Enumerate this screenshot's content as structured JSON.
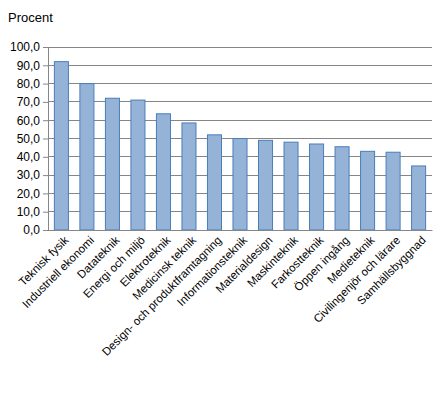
{
  "chart_data": {
    "type": "bar",
    "y_label": "Procent",
    "categories": [
      "Teknisk fysik",
      "Industriell ekonomi",
      "Datateknik",
      "Energi och miljö",
      "Elektroteknik",
      "Medicinsk teknik",
      "Design- och produktframtagning",
      "Informationsteknik",
      "Materialdesign",
      "Maskinteknik",
      "Farkostteknik",
      "Öppen ingång",
      "Medieteknik",
      "Civilingenjör och lärare",
      "Samhällsbyggnad"
    ],
    "values": [
      92,
      80,
      72,
      71,
      63.5,
      58.5,
      52,
      50,
      49,
      48,
      47,
      45.5,
      43,
      42.5,
      35
    ],
    "color": "#95b3d7",
    "ylim": [
      0,
      100
    ],
    "yticks": [
      {
        "value": 0,
        "label": "0,0"
      },
      {
        "value": 10,
        "label": "10,0"
      },
      {
        "value": 20,
        "label": "20,0"
      },
      {
        "value": 30,
        "label": "30,0"
      },
      {
        "value": 40,
        "label": "40,0"
      },
      {
        "value": 50,
        "label": "50,0"
      },
      {
        "value": 60,
        "label": "60,0"
      },
      {
        "value": 70,
        "label": "70,0"
      },
      {
        "value": 80,
        "label": "80,0"
      },
      {
        "value": 90,
        "label": "90,0"
      },
      {
        "value": 100,
        "label": "100,0"
      }
    ],
    "grid": true
  }
}
